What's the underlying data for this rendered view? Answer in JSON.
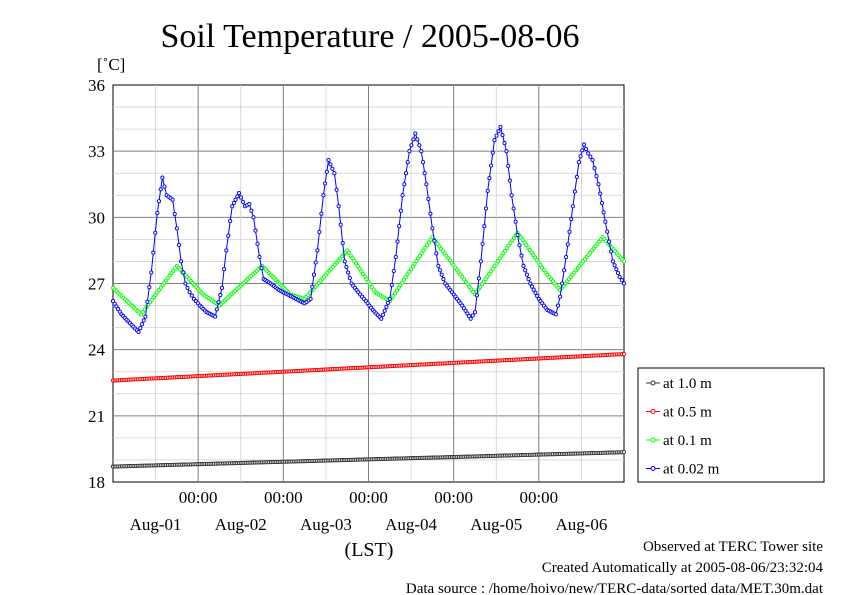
{
  "chart_data": {
    "type": "line",
    "title": "Soil Temperature / 2005-08-06",
    "ylabel": "[˚C]",
    "xlabel": "(LST)",
    "ylim": [
      18,
      36
    ],
    "yticks": [
      18,
      21,
      24,
      27,
      30,
      33,
      36
    ],
    "grid": true,
    "legend_placement": "right",
    "x_time_ticks": [
      "00:00",
      "00:00",
      "00:00",
      "00:00",
      "00:00"
    ],
    "x_date_labels": [
      "Aug-01",
      "Aug-02",
      "Aug-03",
      "Aug-04",
      "Aug-05",
      "Aug-06"
    ],
    "x_range_days": [
      0,
      6
    ],
    "series": [
      {
        "name": "at 1.0 m",
        "color": "#333333",
        "marker": "circle",
        "x": [
          0,
          6
        ],
        "y": [
          18.7,
          19.35
        ]
      },
      {
        "name": "at 0.5 m",
        "color": "#ff0000",
        "marker": "circle",
        "x": [
          0,
          6
        ],
        "y": [
          22.6,
          23.8
        ]
      },
      {
        "name": "at 0.1 m",
        "color": "#00ff00",
        "marker": "circle",
        "x": [
          0,
          0.33,
          0.75,
          1.06,
          1.25,
          1.75,
          2.08,
          2.25,
          2.75,
          3.08,
          3.25,
          3.75,
          4.1,
          4.25,
          4.75,
          5.08,
          5.25,
          5.75,
          6.0
        ],
        "y": [
          26.8,
          25.6,
          27.8,
          26.5,
          26.0,
          27.8,
          26.5,
          26.3,
          28.5,
          26.6,
          26.2,
          29.1,
          27.3,
          26.5,
          29.3,
          27.5,
          26.7,
          29.1,
          28.0
        ]
      },
      {
        "name": "at 0.02 m",
        "color": "#0000ff",
        "marker": "circle",
        "x": [
          0,
          0.1,
          0.2,
          0.3,
          0.38,
          0.45,
          0.52,
          0.58,
          0.63,
          0.7,
          0.75,
          0.8,
          0.85,
          0.9,
          0.95,
          1.02,
          1.1,
          1.2,
          1.28,
          1.33,
          1.4,
          1.48,
          1.55,
          1.6,
          1.65,
          1.72,
          1.77,
          1.85,
          1.95,
          2.05,
          2.15,
          2.25,
          2.32,
          2.4,
          2.47,
          2.53,
          2.6,
          2.65,
          2.72,
          2.8,
          2.88,
          2.97,
          3.05,
          3.15,
          3.25,
          3.32,
          3.4,
          3.48,
          3.55,
          3.62,
          3.68,
          3.75,
          3.82,
          3.9,
          4.0,
          4.1,
          4.2,
          4.25,
          4.32,
          4.4,
          4.48,
          4.55,
          4.62,
          4.68,
          4.75,
          4.82,
          4.9,
          5.0,
          5.1,
          5.2,
          5.25,
          5.32,
          5.4,
          5.47,
          5.53,
          5.58,
          5.63,
          5.7,
          5.78,
          5.87,
          5.95,
          6.0
        ],
        "y": [
          26.2,
          25.6,
          25.2,
          24.8,
          25.5,
          27.5,
          30.2,
          31.8,
          31.0,
          30.8,
          29.5,
          28.0,
          27.0,
          26.6,
          26.3,
          26.0,
          25.7,
          25.5,
          26.8,
          28.5,
          30.5,
          31.1,
          30.5,
          30.6,
          30.0,
          28.2,
          27.2,
          27.0,
          26.7,
          26.5,
          26.3,
          26.1,
          26.3,
          28.5,
          31.0,
          32.6,
          32.0,
          30.5,
          28.0,
          27.0,
          26.6,
          26.2,
          25.8,
          25.4,
          26.3,
          28.2,
          31.0,
          33.0,
          33.8,
          33.0,
          31.5,
          29.5,
          27.8,
          27.0,
          26.5,
          26.0,
          25.4,
          25.7,
          28.0,
          31.2,
          33.5,
          34.1,
          33.0,
          31.0,
          29.2,
          27.8,
          27.0,
          26.3,
          25.8,
          25.6,
          26.4,
          28.2,
          30.5,
          32.5,
          33.3,
          32.9,
          32.6,
          31.5,
          29.8,
          28.0,
          27.3,
          27.0
        ]
      }
    ]
  },
  "footer": {
    "observed": "Observed at TERC Tower site",
    "created": "Created Automatically at 2005-08-06/23:32:04",
    "source": "Data source : /home/hoivo/new/TERC-data/sorted  data/MET.30m.dat"
  }
}
